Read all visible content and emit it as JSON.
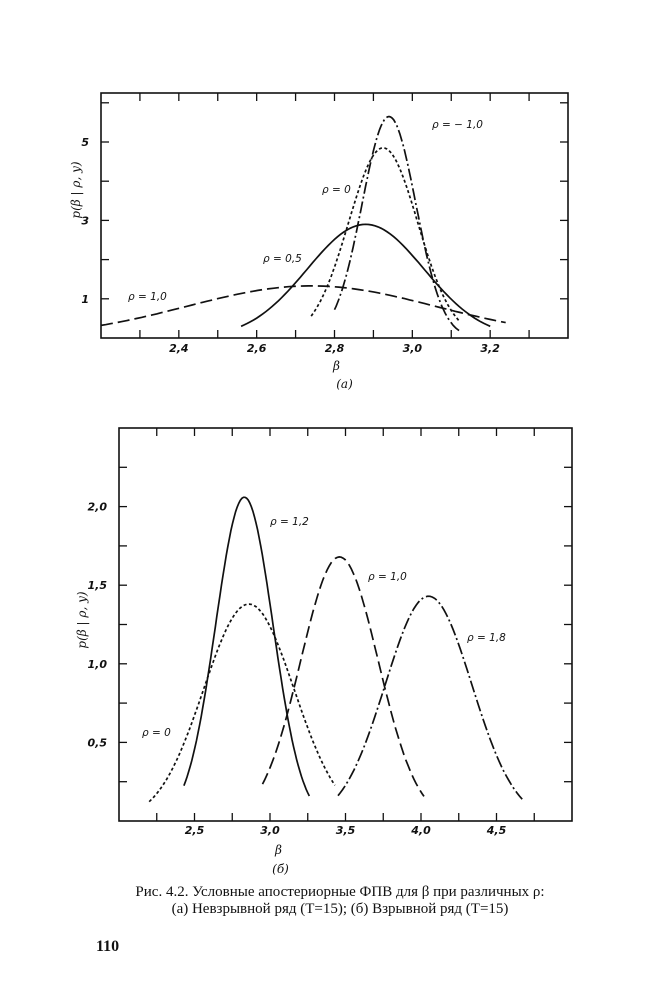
{
  "chart_data": [
    {
      "type": "line",
      "panel_label": "(а)",
      "xlabel": "β",
      "ylabel": "p(β | ρ, y)",
      "xlim": [
        2.2,
        3.4
      ],
      "ylim": [
        0,
        6.25
      ],
      "xticks": [
        2.4,
        2.6,
        2.8,
        3.0,
        3.2
      ],
      "xtick_labels": [
        "2,4",
        "2,6",
        "2,8",
        "3,0",
        "3,2"
      ],
      "yticks": [
        1,
        3,
        5
      ],
      "ytick_labels": [
        "1",
        "3",
        "5"
      ],
      "grid": false,
      "series": [
        {
          "name": "ρ = − 1,0",
          "style": "dashdot",
          "peak": 5.65,
          "mean": 2.94,
          "sd": 0.069,
          "x_range": [
            2.8,
            3.12
          ]
        },
        {
          "name": "ρ = 0",
          "style": "dotted",
          "peak": 4.85,
          "mean": 2.925,
          "sd": 0.089,
          "x_range": [
            2.74,
            3.12
          ]
        },
        {
          "name": "ρ = 0,5",
          "style": "solid",
          "peak": 2.9,
          "mean": 2.88,
          "sd": 0.15,
          "x_range": [
            2.56,
            3.2
          ]
        },
        {
          "name": "ρ = 1,0",
          "style": "longdash",
          "peak": 1.33,
          "mean": 2.74,
          "sd": 0.32,
          "x_range": [
            2.2,
            3.24
          ]
        }
      ]
    },
    {
      "type": "line",
      "panel_label": "(б)",
      "xlabel": "β",
      "ylabel": "p(β | ρ, y)",
      "xlim": [
        2.0,
        5.0
      ],
      "ylim": [
        0,
        2.5
      ],
      "xticks": [
        2.5,
        3.0,
        3.5,
        4.0,
        4.5
      ],
      "xtick_labels": [
        "2,5",
        "3,0",
        "3,5",
        "4,0",
        "4,5"
      ],
      "yticks": [
        0.5,
        1.0,
        1.5,
        2.0
      ],
      "ytick_labels": [
        "0,5",
        "1,0",
        "1,5",
        "2,0"
      ],
      "grid": false,
      "series": [
        {
          "name": "ρ = 1,2",
          "style": "solid",
          "peak": 2.06,
          "mean": 2.83,
          "sd": 0.19,
          "x_range": [
            2.43,
            3.26
          ]
        },
        {
          "name": "ρ = 1,0",
          "style": "dotted",
          "peak": 1.38,
          "mean": 2.86,
          "sd": 0.3,
          "x_range": [
            2.2,
            3.43
          ]
        },
        {
          "name": "ρ = 1,8",
          "style": "longdash",
          "peak": 1.68,
          "mean": 3.46,
          "sd": 0.257,
          "x_range": [
            2.95,
            4.02
          ]
        },
        {
          "name": "ρ = 0",
          "style": "dashdot",
          "peak": 1.43,
          "mean": 4.05,
          "sd": 0.287,
          "x_range": [
            3.45,
            4.67
          ]
        }
      ]
    }
  ],
  "caption": {
    "line1": "Рис. 4.2. Условные апостериорные ФПВ для β при различных ρ:",
    "line2": "(а) Невзрывной ряд (T=15); (б) Взрывной ряд (T=15)"
  },
  "page_number": "110"
}
